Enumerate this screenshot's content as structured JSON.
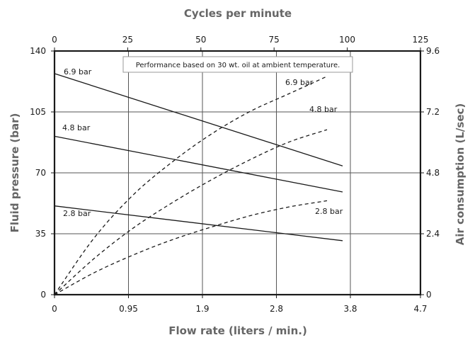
{
  "chart_data": {
    "type": "line",
    "title": "",
    "annotation": "Performance based on 30 wt. oil at ambient temperature.",
    "xlabel": "Flow rate (liters / min.)",
    "x2label": "Cycles per minute",
    "ylabel": "Fluid pressure (bar)",
    "y2label": "Air consumption (L/sec)",
    "xlim": [
      0,
      4.7
    ],
    "ylim": [
      0,
      140
    ],
    "x2lim": [
      0,
      125
    ],
    "y2lim": [
      0,
      9.6
    ],
    "x_ticks": [
      "0",
      "0.95",
      "1.9",
      "2.8",
      "3.8",
      "4.7"
    ],
    "x_tick_values": [
      0,
      0.95,
      1.9,
      2.85,
      3.8,
      4.7
    ],
    "x2_ticks": [
      "0",
      "25",
      "50",
      "75",
      "100",
      "125"
    ],
    "x2_tick_values": [
      0,
      25,
      50,
      75,
      100,
      125
    ],
    "y_ticks": [
      "0",
      "35",
      "70",
      "105",
      "140"
    ],
    "y_tick_values": [
      0,
      35,
      70,
      105,
      140
    ],
    "y2_ticks": [
      "0",
      "2.4",
      "4.8",
      "7.2",
      "9.6"
    ],
    "y2_tick_values": [
      0,
      2.4,
      4.8,
      7.2,
      9.6
    ],
    "grid": true,
    "series": [
      {
        "name": "6.9 bar",
        "axis": "fluid pressure",
        "style": "solid",
        "x": [
          0,
          3.7
        ],
        "y": [
          127,
          74
        ]
      },
      {
        "name": "4.8 bar",
        "axis": "fluid pressure",
        "style": "solid",
        "x": [
          0,
          3.7
        ],
        "y": [
          91,
          59
        ]
      },
      {
        "name": "2.8 bar",
        "axis": "fluid pressure",
        "style": "solid",
        "x": [
          0,
          3.7
        ],
        "y": [
          51,
          31
        ]
      },
      {
        "name": "6.9 bar",
        "axis": "air consumption",
        "style": "dashed",
        "x": [
          0,
          0.5,
          1.0,
          1.5,
          2.0,
          2.5,
          3.0,
          3.5
        ],
        "y": [
          0,
          2.2,
          3.9,
          5.2,
          6.3,
          7.2,
          7.9,
          8.6
        ]
      },
      {
        "name": "4.8 bar",
        "axis": "air consumption",
        "style": "dashed",
        "x": [
          0,
          0.5,
          1.0,
          1.5,
          2.0,
          2.5,
          3.0,
          3.5
        ],
        "y": [
          0,
          1.4,
          2.6,
          3.6,
          4.5,
          5.3,
          6.0,
          6.5
        ]
      },
      {
        "name": "2.8 bar",
        "axis": "air consumption",
        "style": "dashed",
        "x": [
          0,
          0.5,
          1.0,
          1.5,
          2.0,
          2.5,
          3.0,
          3.5
        ],
        "y": [
          0,
          0.85,
          1.55,
          2.15,
          2.65,
          3.1,
          3.45,
          3.7
        ]
      }
    ],
    "labels": {
      "solid_69": "6.9 bar",
      "solid_48": "4.8 bar",
      "solid_28": "2.8 bar",
      "dashed_69": "6.9 bar",
      "dashed_48": "4.8 bar",
      "dashed_28": "2.8 bar"
    }
  },
  "colors": {
    "line": "#1a1a1a",
    "grid": "#555555",
    "axis_title": "#666666"
  }
}
